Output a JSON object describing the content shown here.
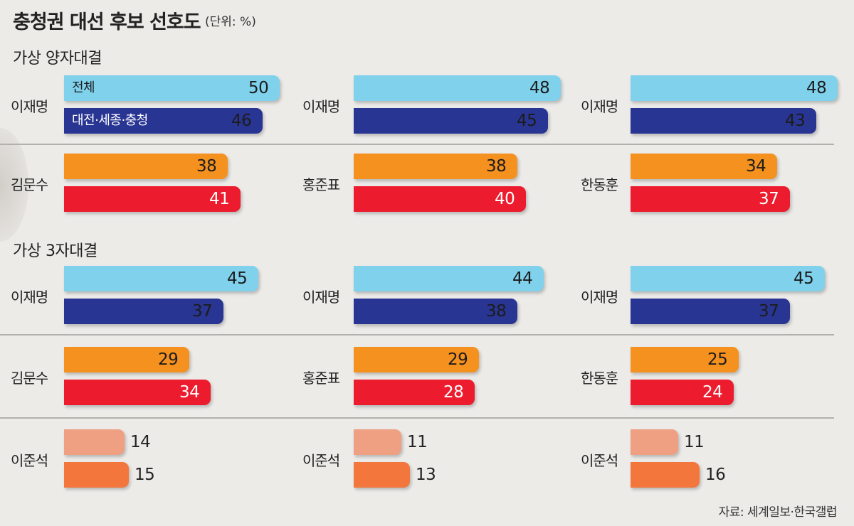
{
  "title": "충청권 대선 후보 선호도",
  "unit": "(단위: %)",
  "source": "자료: 세계일보·한국갤럽",
  "colors": {
    "lee_total": "#7fd1ec",
    "lee_region": "#283593",
    "opp_total": "#f5911e",
    "opp_region": "#ec1c2e",
    "third_total": "#efa083",
    "third_region": "#f3763d"
  },
  "chart_data": {
    "type": "bar",
    "title": "충청권 대선 후보 선호도",
    "unit": "(단위: %)",
    "legend": [
      "전체",
      "대전·세종·충청"
    ],
    "sections": [
      {
        "title": "가상 양자대결",
        "matchups": [
          {
            "candidates": [
              {
                "name": "이재명",
                "total": 50,
                "region": 46
              },
              {
                "name": "김문수",
                "total": 38,
                "region": 41
              }
            ]
          },
          {
            "candidates": [
              {
                "name": "이재명",
                "total": 48,
                "region": 45
              },
              {
                "name": "홍준표",
                "total": 38,
                "region": 40
              }
            ]
          },
          {
            "candidates": [
              {
                "name": "이재명",
                "total": 48,
                "region": 43
              },
              {
                "name": "한동훈",
                "total": 34,
                "region": 37
              }
            ]
          }
        ]
      },
      {
        "title": "가상 3자대결",
        "matchups": [
          {
            "candidates": [
              {
                "name": "이재명",
                "total": 45,
                "region": 37
              },
              {
                "name": "김문수",
                "total": 29,
                "region": 34
              },
              {
                "name": "이준석",
                "total": 14,
                "region": 15
              }
            ]
          },
          {
            "candidates": [
              {
                "name": "이재명",
                "total": 44,
                "region": 38
              },
              {
                "name": "홍준표",
                "total": 29,
                "region": 28
              },
              {
                "name": "이준석",
                "total": 11,
                "region": 13
              }
            ]
          },
          {
            "candidates": [
              {
                "name": "이재명",
                "total": 45,
                "region": 37
              },
              {
                "name": "한동훈",
                "total": 25,
                "region": 24
              },
              {
                "name": "이준석",
                "total": 11,
                "region": 16
              }
            ]
          }
        ]
      }
    ]
  }
}
